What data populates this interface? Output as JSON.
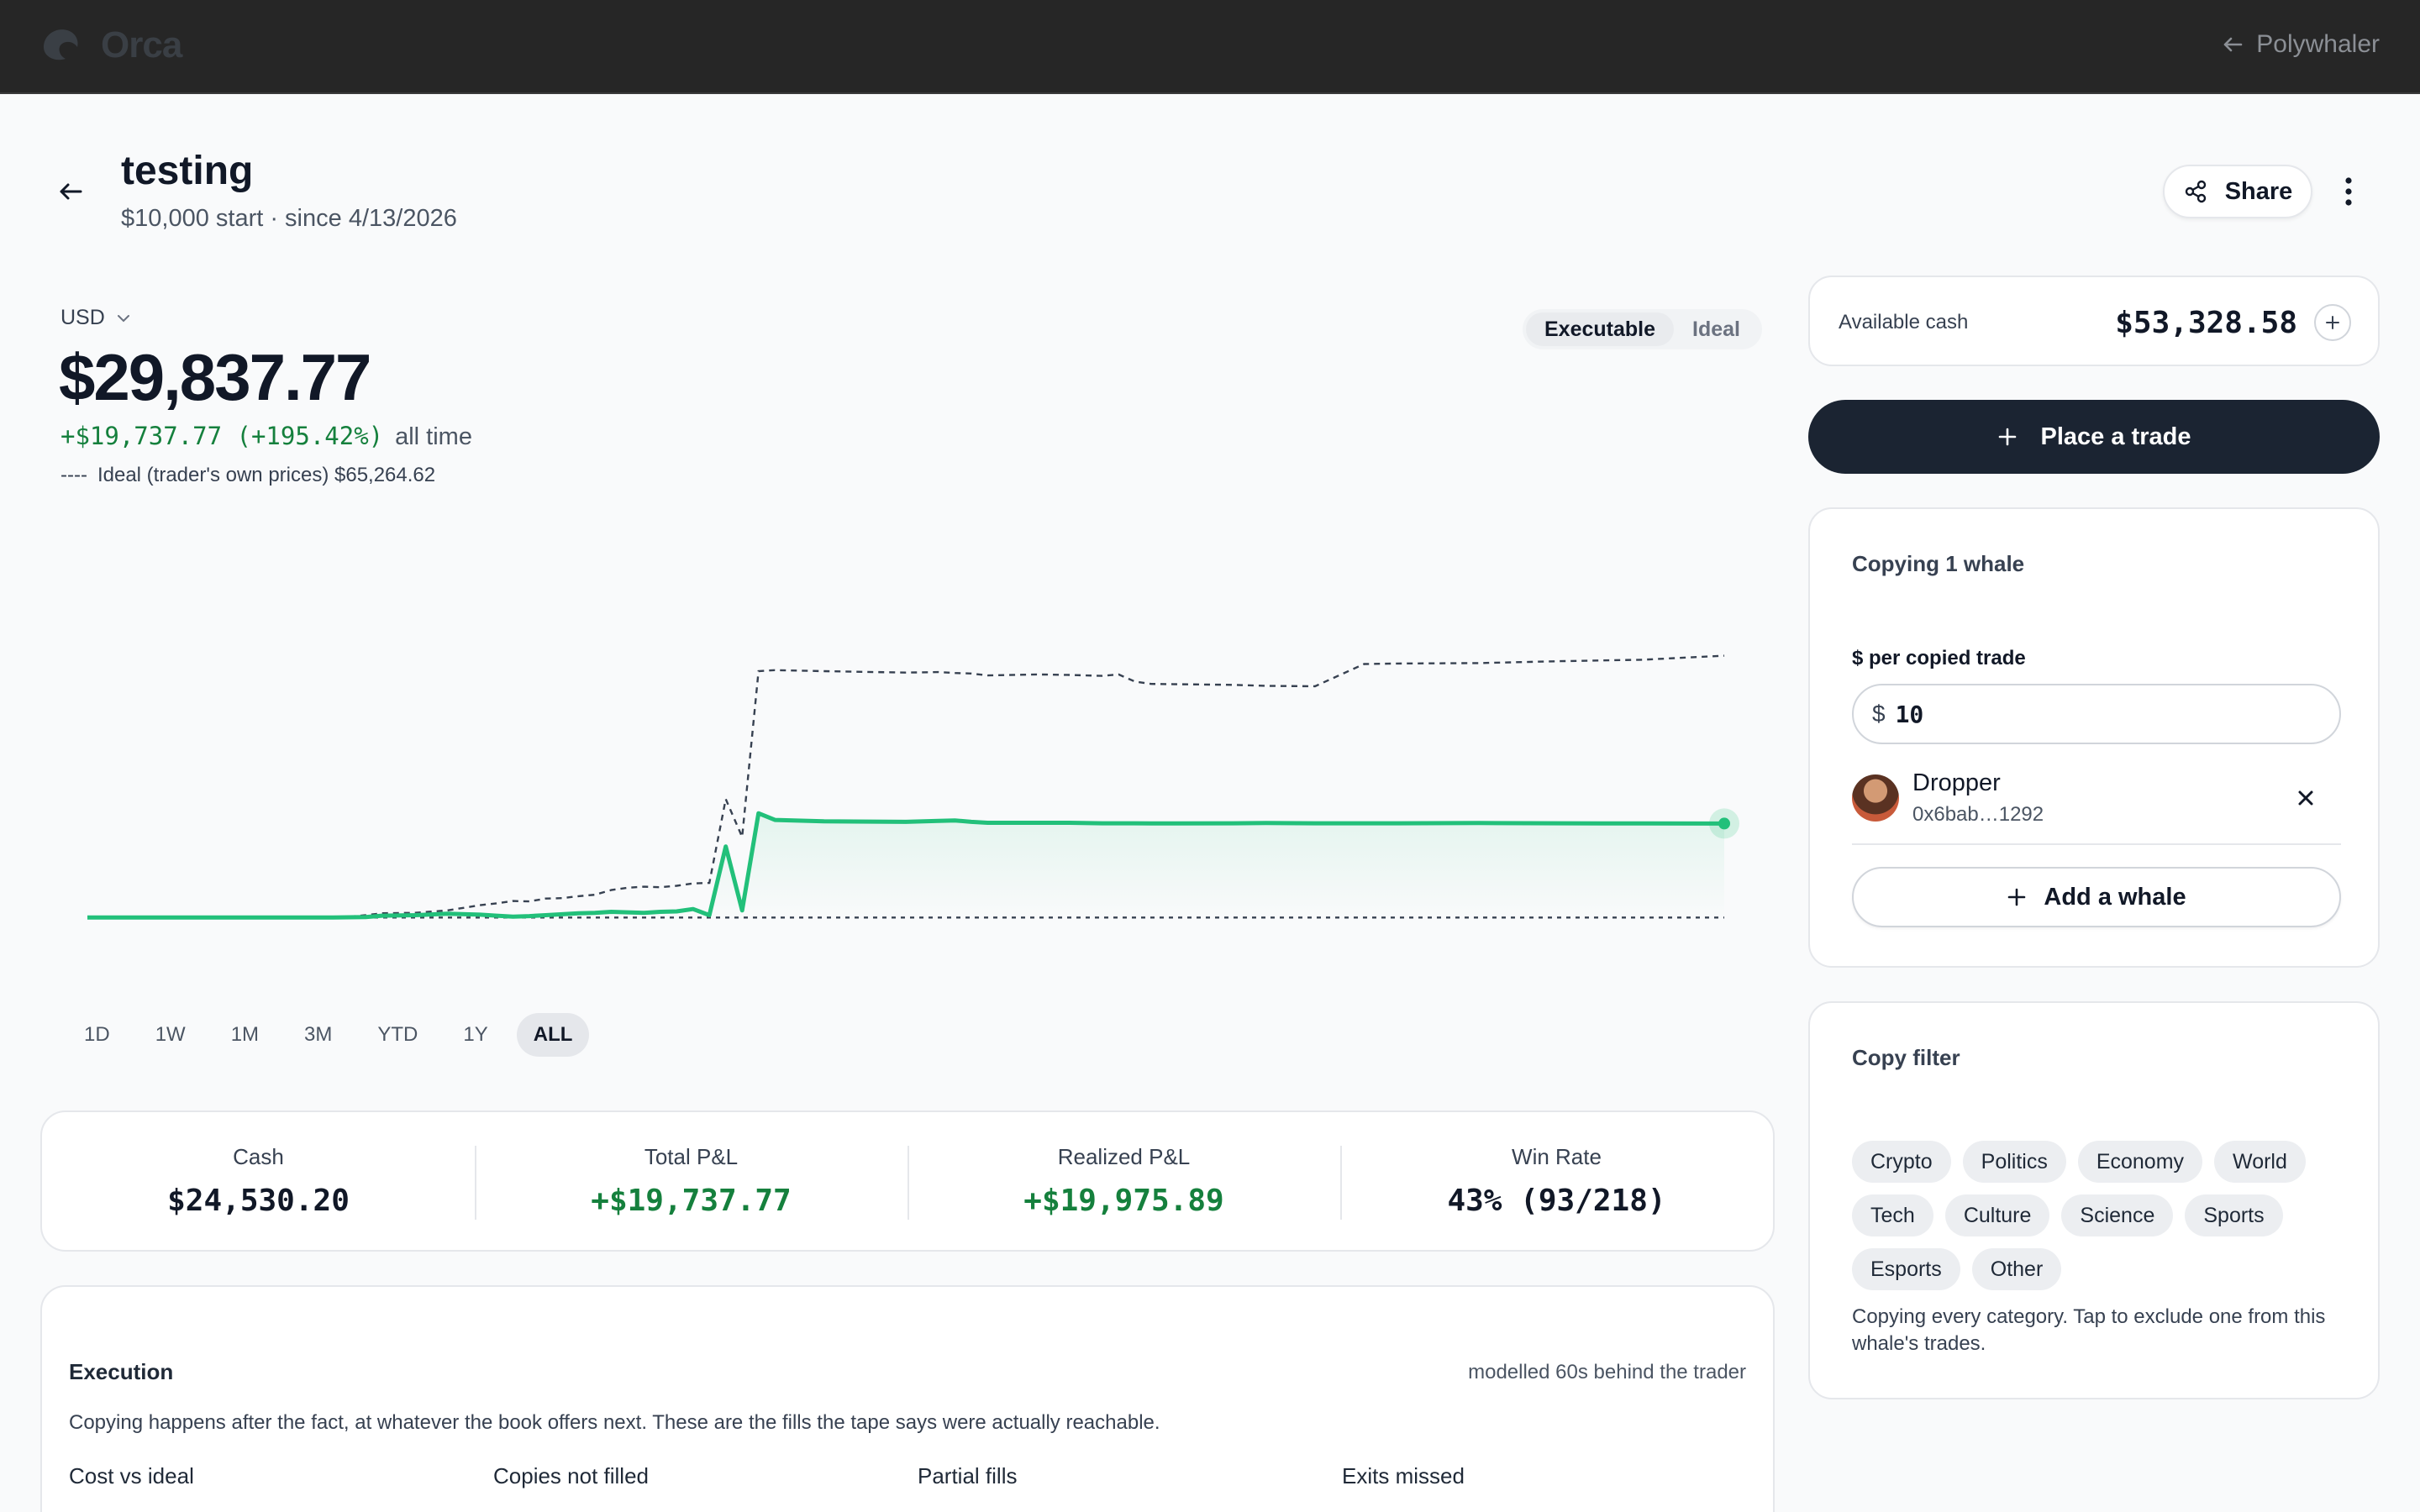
{
  "topbar": {
    "brand": "Orca",
    "back_link": "Polywhaler"
  },
  "header": {
    "title": "testing",
    "subtitle": "$10,000 start · since 4/13/2026",
    "share_label": "Share"
  },
  "summary": {
    "currency": "USD",
    "value": "$29,837.77",
    "gain": "+$19,737.77 (+195.42%)",
    "gain_suffix": "all time",
    "ideal_dash": "----",
    "ideal_text": "Ideal (trader's own prices) $65,264.62"
  },
  "mode_toggle": {
    "options": [
      "Executable",
      "Ideal"
    ],
    "selected": "Executable"
  },
  "ranges": {
    "options": [
      "1D",
      "1W",
      "1M",
      "3M",
      "YTD",
      "1Y",
      "ALL"
    ],
    "selected": "ALL"
  },
  "chart_data": {
    "type": "line",
    "title": "",
    "xlabel": "",
    "ylabel": "",
    "ylim": [
      -2000,
      76000
    ],
    "grid": false,
    "legend": "none",
    "colors": {
      "executable": "#22c07a",
      "ideal": "#374151",
      "baseline": "#374151"
    },
    "x": [
      0,
      5,
      10,
      15,
      16,
      17,
      18,
      20,
      22,
      24,
      25,
      26,
      27,
      28,
      29,
      30,
      31,
      32,
      33,
      34,
      35,
      36,
      37,
      38,
      39,
      40,
      41,
      42,
      45,
      50,
      52,
      53,
      54,
      55,
      58,
      60,
      62,
      63,
      64,
      65,
      70,
      72,
      75,
      78,
      80,
      85,
      90,
      95,
      100
    ],
    "series": [
      {
        "name": "Executable",
        "values": [
          10000,
          10000,
          10000,
          10000,
          10050,
          10100,
          10400,
          10500,
          10800,
          10600,
          10400,
          10200,
          10300,
          10500,
          10700,
          10900,
          11000,
          11200,
          11100,
          11000,
          11200,
          11300,
          11800,
          10500,
          25000,
          11500,
          32000,
          30600,
          30300,
          30200,
          30400,
          30500,
          30200,
          30000,
          30000,
          30000,
          29900,
          29900,
          29900,
          29850,
          29900,
          29950,
          29900,
          29900,
          29900,
          29950,
          29900,
          29850,
          29837.77
        ]
      },
      {
        "name": "Ideal (trader's own prices)",
        "values": [
          10000,
          10000,
          10000,
          10000,
          10200,
          10500,
          10900,
          11000,
          11500,
          12600,
          13000,
          13500,
          13400,
          14000,
          14100,
          14500,
          14800,
          15800,
          16300,
          16500,
          16400,
          16700,
          17200,
          17300,
          35000,
          27000,
          62000,
          62200,
          62000,
          61700,
          61800,
          61600,
          61500,
          61100,
          61300,
          61200,
          61000,
          61300,
          59800,
          59300,
          59100,
          58900,
          58800,
          63500,
          63600,
          63700,
          64100,
          64400,
          65264.62
        ]
      },
      {
        "name": "Start",
        "values": [
          10000,
          10000,
          10000,
          10000,
          10000,
          10000,
          10000,
          10000,
          10000,
          10000,
          10000,
          10000,
          10000,
          10000,
          10000,
          10000,
          10000,
          10000,
          10000,
          10000,
          10000,
          10000,
          10000,
          10000,
          10000,
          10000,
          10000,
          10000,
          10000,
          10000,
          10000,
          10000,
          10000,
          10000,
          10000,
          10000,
          10000,
          10000,
          10000,
          10000,
          10000,
          10000,
          10000,
          10000,
          10000,
          10000,
          10000,
          10000,
          10000
        ]
      }
    ]
  },
  "stats": [
    {
      "label": "Cash",
      "value": "$24,530.20",
      "positive": false
    },
    {
      "label": "Total P&L",
      "value": "+$19,737.77",
      "positive": true
    },
    {
      "label": "Realized P&L",
      "value": "+$19,975.89",
      "positive": true
    },
    {
      "label": "Win Rate",
      "value": "43% (93/218)",
      "positive": false
    }
  ],
  "execution": {
    "title": "Execution",
    "note": "modelled 60s behind the trader",
    "description": "Copying happens after the fact, at whatever the book offers next. These are the fills the tape says were actually reachable.",
    "metrics": [
      {
        "label": "Cost vs ideal"
      },
      {
        "label": "Copies not filled"
      },
      {
        "label": "Partial fills"
      },
      {
        "label": "Exits missed"
      }
    ]
  },
  "cash": {
    "label": "Available cash",
    "value": "$53,328.58"
  },
  "trade_button": {
    "label": "Place a trade"
  },
  "copying": {
    "title": "Copying 1 whale",
    "per_trade_label": "$ per copied trade",
    "currency_symbol": "$",
    "per_trade_value": "10",
    "whale": {
      "name": "Dropper",
      "address": "0x6bab…1292"
    },
    "add_label": "Add a whale"
  },
  "filter": {
    "title": "Copy filter",
    "chips": [
      "Crypto",
      "Politics",
      "Economy",
      "World",
      "Tech",
      "Culture",
      "Science",
      "Sports",
      "Esports",
      "Other"
    ],
    "note": "Copying every category. Tap to exclude one from this whale's trades."
  }
}
